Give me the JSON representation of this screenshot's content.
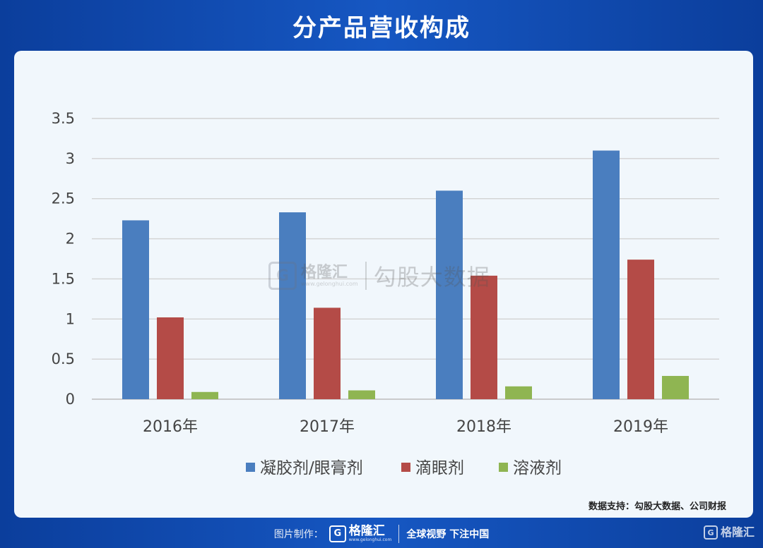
{
  "header": {
    "title": "分产品营收构成"
  },
  "source_note": "数据支持：勾股大数据、公司财报",
  "watermark": {
    "logo_glyph": "G",
    "brand": "格隆汇",
    "url": "www.gelonghui.com",
    "text": "勾股大数据"
  },
  "footer": {
    "credit_label": "图片制作：",
    "brand": "格隆汇",
    "brand_url": "www.gelonghui.com",
    "slogan": "全球视野 下注中国",
    "logo_glyph": "G"
  },
  "corner": {
    "brand": "格隆汇",
    "logo_glyph": "G"
  },
  "chart_data": {
    "type": "bar",
    "categories": [
      "2016年",
      "2017年",
      "2018年",
      "2019年"
    ],
    "series": [
      {
        "name": "凝胶剂/眼膏剂",
        "values": [
          2.23,
          2.33,
          2.6,
          3.1
        ],
        "color": "#4a7ebf"
      },
      {
        "name": "滴眼剂",
        "values": [
          1.02,
          1.14,
          1.54,
          1.74
        ],
        "color": "#b44b47"
      },
      {
        "name": "溶液剂",
        "values": [
          0.09,
          0.11,
          0.16,
          0.29
        ],
        "color": "#8fb552"
      }
    ],
    "ylim": [
      0,
      3.5
    ],
    "yticks": [
      "0",
      "0.5",
      "1",
      "1.5",
      "2",
      "2.5",
      "3",
      "3.5"
    ],
    "grid": true,
    "legend_position": "bottom"
  }
}
